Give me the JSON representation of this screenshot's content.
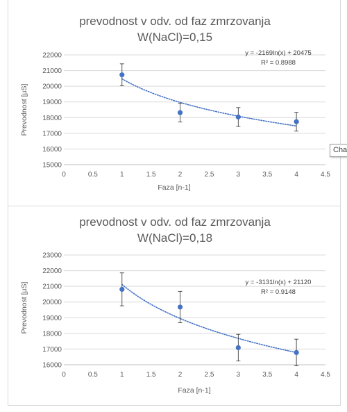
{
  "tooltip": {
    "text": "Cha"
  },
  "colors": {
    "marker": "#4472c4",
    "trend": "#4472c4",
    "gridline": "#d9d9d9",
    "axis": "#bfbfbf",
    "text": "#595959",
    "errorbar": "#404040"
  },
  "chart_data": [
    {
      "type": "scatter",
      "title_line1": "prevodnost v odv. od faz zmrzovanja",
      "title_line2": "W(NaCl)=0,15",
      "xlabel": "Faza [n-1]",
      "ylabel": "Prevodnost [µS]",
      "xlim": [
        0,
        4.5
      ],
      "ylim": [
        15000,
        22000
      ],
      "xticks": [
        0,
        0.5,
        1,
        1.5,
        2,
        2.5,
        3,
        3.5,
        4,
        4.5
      ],
      "xtick_labels": [
        "0",
        "0.5",
        "1",
        "1.5",
        "2",
        "2.5",
        "3",
        "3.5",
        "4",
        "4.5"
      ],
      "yticks": [
        15000,
        16000,
        17000,
        18000,
        19000,
        20000,
        21000,
        22000
      ],
      "ytick_labels": [
        "15000",
        "16000",
        "17000",
        "18000",
        "19000",
        "20000",
        "21000",
        "22000"
      ],
      "grid": "horizontal",
      "points": [
        {
          "x": 1,
          "y": 20730,
          "err": 700
        },
        {
          "x": 2,
          "y": 18320,
          "err": 600
        },
        {
          "x": 3,
          "y": 18040,
          "err": 600
        },
        {
          "x": 4,
          "y": 17740,
          "err": 600
        }
      ],
      "trendline": {
        "type": "logarithmic",
        "a": -2169,
        "b": 20475
      },
      "equation": "y = -2169ln(x) + 20475",
      "r2": "R² = 0.8988"
    },
    {
      "type": "scatter",
      "title_line1": "prevodnost v odv. od faz zmrzovanja",
      "title_line2": "W(NaCl)=0,18",
      "xlabel": "Faza [n-1]",
      "ylabel": "Prevodnost [µS]",
      "xlim": [
        0,
        4.5
      ],
      "ylim": [
        16000,
        23000
      ],
      "xticks": [
        0,
        0.5,
        1,
        1.5,
        2,
        2.5,
        3,
        3.5,
        4,
        4.5
      ],
      "xtick_labels": [
        "0",
        "0.5",
        "1",
        "1.5",
        "2",
        "2.5",
        "3",
        "3.5",
        "4",
        "4.5"
      ],
      "yticks": [
        16000,
        17000,
        18000,
        19000,
        20000,
        21000,
        22000,
        23000
      ],
      "ytick_labels": [
        "16000",
        "17000",
        "18000",
        "19000",
        "20000",
        "21000",
        "22000",
        "23000"
      ],
      "grid": "horizontal",
      "points": [
        {
          "x": 1,
          "y": 20810,
          "err": 1050
        },
        {
          "x": 2,
          "y": 19680,
          "err": 1000
        },
        {
          "x": 3,
          "y": 17090,
          "err": 850
        },
        {
          "x": 4,
          "y": 16780,
          "err": 850
        }
      ],
      "trendline": {
        "type": "logarithmic",
        "a": -3131,
        "b": 21120
      },
      "equation": "y = -3131ln(x) + 21120",
      "r2": "R² = 0.9148"
    }
  ]
}
